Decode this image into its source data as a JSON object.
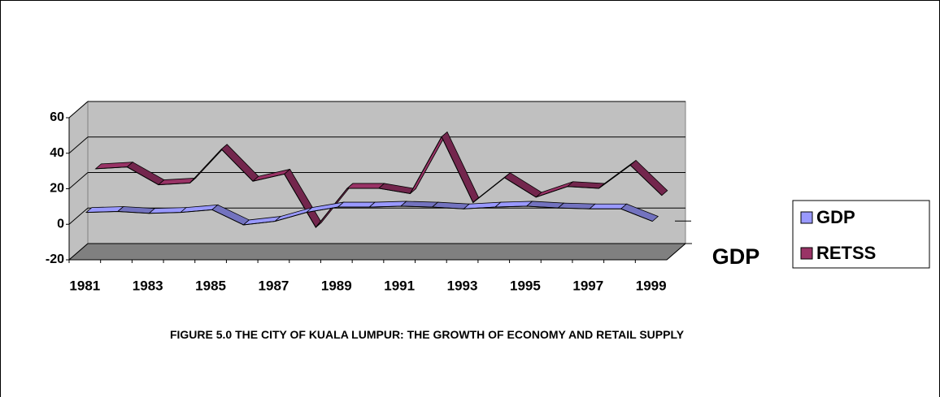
{
  "chart_data": {
    "type": "line3d",
    "caption": "FIGURE 5.0 THE CITY OF KUALA LUMPUR: THE GROWTH OF ECONOMY AND RETAIL SUPPLY",
    "series_axis_label": "GDP",
    "categories": [
      "1981",
      null,
      "1983",
      null,
      "1985",
      null,
      "1987",
      null,
      "1989",
      null,
      "1991",
      null,
      "1993",
      null,
      "1995",
      null,
      "1997",
      null,
      "1999"
    ],
    "series": [
      {
        "name": "GDP",
        "color": "#9999ff",
        "values": [
          6,
          6.5,
          5.5,
          6,
          7.5,
          -1,
          1,
          6,
          9,
          9,
          9.5,
          9,
          8,
          9,
          9.5,
          8.5,
          8,
          8,
          1
        ]
      },
      {
        "name": "RETSS",
        "color": "#993366",
        "values": [
          26,
          27,
          17,
          18,
          37,
          19,
          23,
          -7,
          15,
          15,
          12,
          44,
          7,
          21,
          10,
          16,
          15,
          28,
          11
        ]
      }
    ],
    "ylim": [
      -20,
      60
    ],
    "yticks": [
      -20,
      0,
      20,
      40,
      60
    ],
    "grid": true,
    "legend": "right"
  }
}
